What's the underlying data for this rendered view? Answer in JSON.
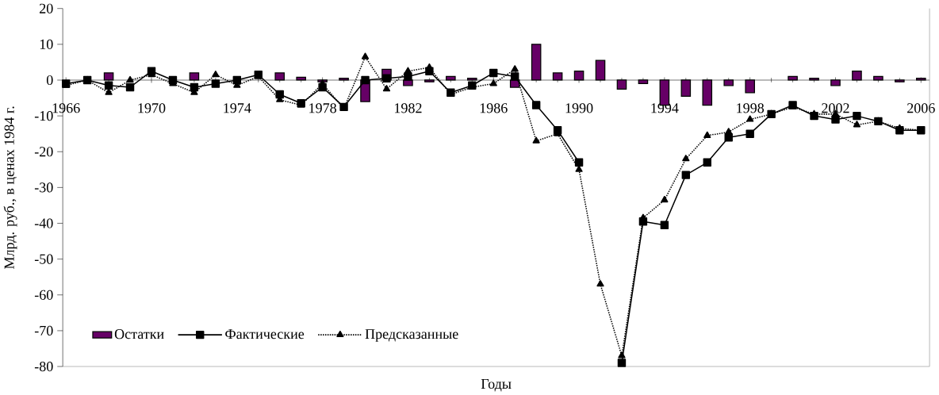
{
  "chart_data": {
    "type": "line",
    "xlabel": "Годы",
    "ylabel": "Млрд. руб., в ценах 1984 г.",
    "x": [
      1966,
      1967,
      1968,
      1969,
      1970,
      1971,
      1972,
      1973,
      1974,
      1975,
      1976,
      1977,
      1978,
      1979,
      1980,
      1981,
      1982,
      1983,
      1984,
      1985,
      1986,
      1987,
      1988,
      1989,
      1990,
      1991,
      1992,
      1993,
      1994,
      1995,
      1996,
      1997,
      1998,
      1999,
      2000,
      2001,
      2002,
      2003,
      2004,
      2005,
      2006
    ],
    "series": [
      {
        "name": "Остатки",
        "type": "bar",
        "color": "#660066",
        "values": [
          null,
          null,
          2,
          null,
          null,
          null,
          2,
          null,
          null,
          null,
          2,
          0.8,
          -0.5,
          0.5,
          -6,
          3,
          -1.5,
          -0.5,
          1,
          0.5,
          null,
          -2,
          10,
          2,
          2.5,
          5.5,
          -2.5,
          -1,
          -7,
          -4.5,
          -7,
          -1.5,
          -3.5,
          null,
          1,
          0.5,
          -1.5,
          2.5,
          1,
          -0.5,
          0.5
        ]
      },
      {
        "name": "Фактические",
        "color": "#000000",
        "marker": "square",
        "line_style": "solid",
        "values": [
          -1,
          0,
          -1.5,
          -2,
          2.5,
          0,
          -2,
          -1,
          0,
          1.5,
          -4,
          -6.5,
          -2,
          -7.5,
          0,
          0.5,
          1,
          2.5,
          -3.5,
          -1.5,
          2,
          1,
          -7,
          -14,
          -23,
          null,
          -79,
          -39.5,
          -40.5,
          -26.5,
          -23,
          -16,
          -15,
          -9.5,
          -7,
          -10,
          -11,
          -10,
          -11.5,
          -14,
          -14
        ]
      },
      {
        "name": "Предсказанные",
        "color": "#000000",
        "marker": "triangle",
        "line_style": "dotted",
        "values": [
          -1.5,
          0,
          -3.5,
          0,
          1.5,
          -1,
          -3.5,
          1.5,
          -1.5,
          1,
          -5.5,
          -7,
          -1,
          -8,
          6.5,
          -2.5,
          2.5,
          3.5,
          -4,
          -2,
          -1,
          3,
          -17,
          -15,
          -25,
          -57,
          -77,
          -38.5,
          -33.5,
          -22,
          -15.5,
          -14.5,
          -11,
          -9.5,
          -7.5,
          -9.5,
          -9.5,
          -12.5,
          -11.5,
          -13.5,
          -14
        ]
      }
    ],
    "xlim": [
      1965.85,
      2006.4
    ],
    "xticks": [
      1966,
      1970,
      1974,
      1978,
      1982,
      1986,
      1990,
      1994,
      1998,
      2002,
      2006
    ],
    "ylim": [
      -80,
      20
    ],
    "yticks": [
      -80,
      -70,
      -60,
      -50,
      -40,
      -30,
      -20,
      -10,
      0,
      10,
      20
    ],
    "grid": false,
    "legend": "bottom left"
  }
}
